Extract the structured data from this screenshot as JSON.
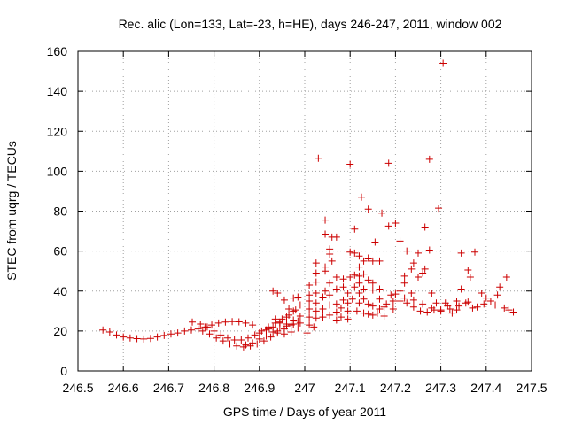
{
  "chart_data": {
    "type": "scatter",
    "title": "Rec. alic (Lon=133, Lat=-23, h=HE), days 246-247, 2011, window 002",
    "xlabel": "GPS time / Days of year 2011",
    "ylabel": "STEC from uqrg / TECUs",
    "xlim": [
      246.5,
      247.5
    ],
    "ylim": [
      0,
      160
    ],
    "xticks": [
      246.5,
      246.6,
      246.7,
      246.8,
      246.9,
      247,
      247.1,
      247.2,
      247.3,
      247.4,
      247.5
    ],
    "xtick_labels": [
      "246.5",
      "246.6",
      "246.7",
      "246.8",
      "246.9",
      "247",
      "247.1",
      "247.2",
      "247.3",
      "247.4",
      "247.5"
    ],
    "yticks": [
      0,
      20,
      40,
      60,
      80,
      100,
      120,
      140,
      160
    ],
    "ytick_labels": [
      "0",
      "20",
      "40",
      "60",
      "80",
      "100",
      "120",
      "140",
      "160"
    ],
    "grid": true,
    "marker": "+",
    "color": "#cc0000",
    "points": [
      [
        246.555,
        20.5
      ],
      [
        246.57,
        19.5
      ],
      [
        246.585,
        18.0
      ],
      [
        246.6,
        17.0
      ],
      [
        246.615,
        16.5
      ],
      [
        246.63,
        16.2
      ],
      [
        246.645,
        16.0
      ],
      [
        246.66,
        16.3
      ],
      [
        246.675,
        17.0
      ],
      [
        246.69,
        17.8
      ],
      [
        246.705,
        18.5
      ],
      [
        246.72,
        19.0
      ],
      [
        246.735,
        20.0
      ],
      [
        246.75,
        20.5
      ],
      [
        246.765,
        21.0
      ],
      [
        246.78,
        22.0
      ],
      [
        246.795,
        23.0
      ],
      [
        246.81,
        24.0
      ],
      [
        246.825,
        24.5
      ],
      [
        246.84,
        24.7
      ],
      [
        246.855,
        24.6
      ],
      [
        246.87,
        24.0
      ],
      [
        246.885,
        23.0
      ],
      [
        246.752,
        24.5
      ],
      [
        246.77,
        23.5
      ],
      [
        246.785,
        22.0
      ],
      [
        246.8,
        20.0
      ],
      [
        246.815,
        18.0
      ],
      [
        246.83,
        16.5
      ],
      [
        246.845,
        15.5
      ],
      [
        246.86,
        15.5
      ],
      [
        246.875,
        16.5
      ],
      [
        246.89,
        18.0
      ],
      [
        246.905,
        20.0
      ],
      [
        246.92,
        22.0
      ],
      [
        246.935,
        24.0
      ],
      [
        246.95,
        26.0
      ],
      [
        246.965,
        28.0
      ],
      [
        246.98,
        30.5
      ],
      [
        246.775,
        20.0
      ],
      [
        246.79,
        18.5
      ],
      [
        246.805,
        16.5
      ],
      [
        246.82,
        15.0
      ],
      [
        246.835,
        13.5
      ],
      [
        246.85,
        12.5
      ],
      [
        246.865,
        12.0
      ],
      [
        246.88,
        12.5
      ],
      [
        246.895,
        13.5
      ],
      [
        246.91,
        15.0
      ],
      [
        246.925,
        17.0
      ],
      [
        246.94,
        19.0
      ],
      [
        246.955,
        21.0
      ],
      [
        246.97,
        23.0
      ],
      [
        246.985,
        25.0
      ],
      [
        246.87,
        13.0
      ],
      [
        246.885,
        14.0
      ],
      [
        246.9,
        16.0
      ],
      [
        246.915,
        17.5
      ],
      [
        246.93,
        19.5
      ],
      [
        246.945,
        21.5
      ],
      [
        246.96,
        23.5
      ],
      [
        246.975,
        25.5
      ],
      [
        246.99,
        27.5
      ],
      [
        246.9,
        19.0
      ],
      [
        246.915,
        20.5
      ],
      [
        246.93,
        22.0
      ],
      [
        246.945,
        24.0
      ],
      [
        246.96,
        27.0
      ],
      [
        246.975,
        30.0
      ],
      [
        246.99,
        33.0
      ],
      [
        246.93,
        40.0
      ],
      [
        246.94,
        39.0
      ],
      [
        246.955,
        35.5
      ],
      [
        246.965,
        31.0
      ],
      [
        246.975,
        36.5
      ],
      [
        246.985,
        37.0
      ],
      [
        246.935,
        26.0
      ],
      [
        246.945,
        24.5
      ],
      [
        246.96,
        22.5
      ],
      [
        246.975,
        23.5
      ],
      [
        246.99,
        24.0
      ],
      [
        246.92,
        21.0
      ],
      [
        246.94,
        20.0
      ],
      [
        246.955,
        18.5
      ],
      [
        246.97,
        19.5
      ],
      [
        246.985,
        21.5
      ],
      [
        247.005,
        19.0
      ],
      [
        247.01,
        23.0
      ],
      [
        247.01,
        27.0
      ],
      [
        247.01,
        31.0
      ],
      [
        247.01,
        35.0
      ],
      [
        247.01,
        38.0
      ],
      [
        247.01,
        43.0
      ],
      [
        247.02,
        22.0
      ],
      [
        247.025,
        26.5
      ],
      [
        247.025,
        30.0
      ],
      [
        247.025,
        34.0
      ],
      [
        247.025,
        39.0
      ],
      [
        247.025,
        44.5
      ],
      [
        247.025,
        49.0
      ],
      [
        247.025,
        54.0
      ],
      [
        247.03,
        106.5
      ],
      [
        247.04,
        27.0
      ],
      [
        247.04,
        31.0
      ],
      [
        247.04,
        37.0
      ],
      [
        247.045,
        40.0
      ],
      [
        247.045,
        50.0
      ],
      [
        247.045,
        52.0
      ],
      [
        247.045,
        68.5
      ],
      [
        247.045,
        75.5
      ],
      [
        247.055,
        28.0
      ],
      [
        247.055,
        33.0
      ],
      [
        247.055,
        38.0
      ],
      [
        247.055,
        44.0
      ],
      [
        247.055,
        58.5
      ],
      [
        247.055,
        61.0
      ],
      [
        247.06,
        67.0
      ],
      [
        247.06,
        55.0
      ],
      [
        247.07,
        25.5
      ],
      [
        247.07,
        29.5
      ],
      [
        247.07,
        33.5
      ],
      [
        247.07,
        41.0
      ],
      [
        247.07,
        47.0
      ],
      [
        247.07,
        67.0
      ],
      [
        247.08,
        27.0
      ],
      [
        247.08,
        31.5
      ],
      [
        247.085,
        35.5
      ],
      [
        247.085,
        42.0
      ],
      [
        247.085,
        46.0
      ],
      [
        247.095,
        26.0
      ],
      [
        247.095,
        30.0
      ],
      [
        247.095,
        34.0
      ],
      [
        247.095,
        39.0
      ],
      [
        247.1,
        47.0
      ],
      [
        247.1,
        59.5
      ],
      [
        247.1,
        103.5
      ],
      [
        247.105,
        36.0
      ],
      [
        247.11,
        42.0
      ],
      [
        247.11,
        48.0
      ],
      [
        247.11,
        71.0
      ],
      [
        247.11,
        59.0
      ],
      [
        247.115,
        30.0
      ],
      [
        247.12,
        34.0
      ],
      [
        247.12,
        39.0
      ],
      [
        247.12,
        44.0
      ],
      [
        247.12,
        47.5
      ],
      [
        247.12,
        52.0
      ],
      [
        247.12,
        57.5
      ],
      [
        247.125,
        87.0
      ],
      [
        247.13,
        29.0
      ],
      [
        247.13,
        36.0
      ],
      [
        247.13,
        41.0
      ],
      [
        247.13,
        48.5
      ],
      [
        247.13,
        55.0
      ],
      [
        247.14,
        28.5
      ],
      [
        247.14,
        33.5
      ],
      [
        247.14,
        45.5
      ],
      [
        247.14,
        56.5
      ],
      [
        247.14,
        81.0
      ],
      [
        247.15,
        28.0
      ],
      [
        247.15,
        32.5
      ],
      [
        247.15,
        40.5
      ],
      [
        247.15,
        44.0
      ],
      [
        247.15,
        55.0
      ],
      [
        247.155,
        64.5
      ],
      [
        247.16,
        29.0
      ],
      [
        247.165,
        31.0
      ],
      [
        247.165,
        36.0
      ],
      [
        247.165,
        41.0
      ],
      [
        247.165,
        55.0
      ],
      [
        247.17,
        79.0
      ],
      [
        247.175,
        27.5
      ],
      [
        247.175,
        32.0
      ],
      [
        247.18,
        33.5
      ],
      [
        247.185,
        104.0
      ],
      [
        247.185,
        72.5
      ],
      [
        247.19,
        38.0
      ],
      [
        247.195,
        35.0
      ],
      [
        247.195,
        31.0
      ],
      [
        247.2,
        74.0
      ],
      [
        247.21,
        65.0
      ],
      [
        247.21,
        40.0
      ],
      [
        247.21,
        35.0
      ],
      [
        247.22,
        47.5
      ],
      [
        247.22,
        44.0
      ],
      [
        247.225,
        60.0
      ],
      [
        247.225,
        34.0
      ],
      [
        247.235,
        51.0
      ],
      [
        247.235,
        39.0
      ],
      [
        247.24,
        54.0
      ],
      [
        247.24,
        32.0
      ],
      [
        247.25,
        59.0
      ],
      [
        247.25,
        47.0
      ],
      [
        247.255,
        30.0
      ],
      [
        247.26,
        49.0
      ],
      [
        247.265,
        72.0
      ],
      [
        247.265,
        51.0
      ],
      [
        247.27,
        29.5
      ],
      [
        247.275,
        60.5
      ],
      [
        247.275,
        106.0
      ],
      [
        247.28,
        39.0
      ],
      [
        247.285,
        30.5
      ],
      [
        247.29,
        34.0
      ],
      [
        247.295,
        81.5
      ],
      [
        247.3,
        30.0
      ],
      [
        247.305,
        154.0
      ],
      [
        247.31,
        34.0
      ],
      [
        247.315,
        32.5
      ],
      [
        247.325,
        29.0
      ],
      [
        247.335,
        30.5
      ],
      [
        247.335,
        35.0
      ],
      [
        247.345,
        59.0
      ],
      [
        247.345,
        41.0
      ],
      [
        247.355,
        34.0
      ],
      [
        247.36,
        50.5
      ],
      [
        247.365,
        47.0
      ],
      [
        247.37,
        31.5
      ],
      [
        247.375,
        59.5
      ],
      [
        247.38,
        32.0
      ],
      [
        247.39,
        39.0
      ],
      [
        247.395,
        33.5
      ],
      [
        247.4,
        36.5
      ],
      [
        247.41,
        35.0
      ],
      [
        247.42,
        33.0
      ],
      [
        247.425,
        38.0
      ],
      [
        247.43,
        42.0
      ],
      [
        247.44,
        31.5
      ],
      [
        247.445,
        47.0
      ],
      [
        247.45,
        30.5
      ],
      [
        247.46,
        29.5
      ],
      [
        247.2,
        38.5
      ],
      [
        247.22,
        36.5
      ],
      [
        247.24,
        35.5
      ],
      [
        247.26,
        33.5
      ],
      [
        247.28,
        31.5
      ],
      [
        247.3,
        30.5
      ],
      [
        247.32,
        31.0
      ],
      [
        247.34,
        32.5
      ],
      [
        247.36,
        34.5
      ]
    ]
  }
}
